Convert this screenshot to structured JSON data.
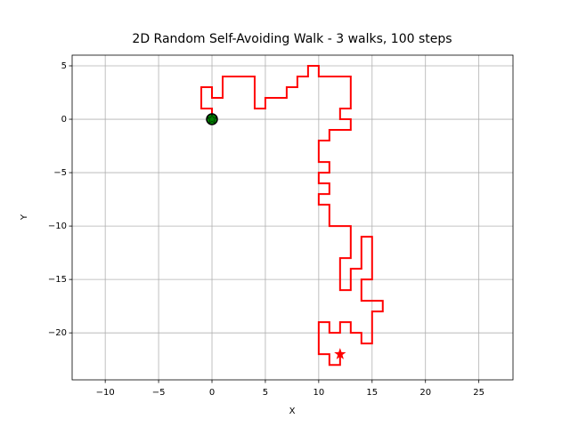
{
  "chart_data": {
    "type": "line",
    "title": "2D Random Self-Avoiding Walk - 3 walks, 100 steps",
    "xlabel": "X",
    "ylabel": "Y",
    "x": [
      0,
      0,
      -1,
      -1,
      0,
      0,
      1,
      1,
      4,
      4,
      5,
      5,
      7,
      7,
      8,
      8,
      9,
      9,
      10,
      10,
      13,
      13,
      12,
      12,
      13,
      13,
      11,
      11,
      10,
      10,
      11,
      11,
      10,
      10,
      11,
      11,
      10,
      10,
      11,
      11,
      13,
      13,
      12,
      12,
      13,
      13,
      14,
      14,
      15,
      15,
      14,
      14,
      16,
      16,
      15,
      15,
      14,
      14,
      13,
      13,
      12,
      12,
      11,
      11,
      10,
      10,
      11,
      11,
      12,
      12
    ],
    "series": [
      {
        "values": [
          0,
          1,
          1,
          3,
          3,
          2,
          2,
          4,
          4,
          1,
          1,
          2,
          2,
          3,
          3,
          4,
          4,
          5,
          5,
          4,
          4,
          1,
          1,
          0,
          0,
          -1,
          -1,
          -2,
          -2,
          -4,
          -4,
          -5,
          -5,
          -6,
          -6,
          -7,
          -7,
          -8,
          -8,
          -10,
          -10,
          -13,
          -13,
          -16,
          -16,
          -14,
          -14,
          -11,
          -11,
          -15,
          -15,
          -17,
          -17,
          -18,
          -18,
          -21,
          -21,
          -20,
          -20,
          -19,
          -19,
          -20,
          -20,
          -19,
          -19,
          -22,
          -22,
          -23,
          -23,
          -22
        ],
        "color": "#ff0000"
      }
    ],
    "start_color": "#008000",
    "end_color": "#ff0000",
    "xlim": [
      -13.1,
      28.2
    ],
    "ylim": [
      -24.4,
      6.0
    ],
    "xticks": [
      {
        "value": -10,
        "label": "−10"
      },
      {
        "value": -5,
        "label": "−5"
      },
      0,
      5,
      10,
      15,
      20,
      25
    ],
    "yticks": [
      {
        "value": -20,
        "label": "−20"
      },
      {
        "value": -15,
        "label": "−15"
      },
      {
        "value": -10,
        "label": "−10"
      },
      {
        "value": -5,
        "label": "−5"
      },
      0,
      5
    ],
    "grid": true
  }
}
